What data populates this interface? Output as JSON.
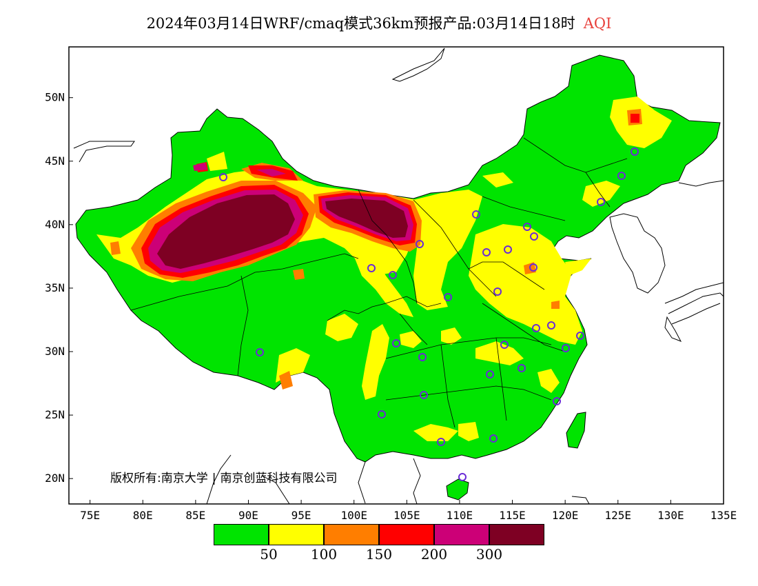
{
  "title": {
    "main": "2024年03月14日WRF/cmaq模式36km预报产品:03月14日18时",
    "variable": "AQI"
  },
  "copyright": {
    "owner1": "版权所有:南京大学",
    "separator": "|",
    "owner2": "南京创蓝科技有限公司"
  },
  "map": {
    "lon_range": [
      73,
      135
    ],
    "lat_range": [
      18,
      54
    ],
    "x_ticks": [
      "75E",
      "80E",
      "85E",
      "90E",
      "95E",
      "100E",
      "105E",
      "110E",
      "115E",
      "120E",
      "125E",
      "130E",
      "135E"
    ],
    "y_ticks": [
      "20N",
      "25N",
      "30N",
      "35N",
      "40N",
      "45N",
      "50N"
    ]
  },
  "legend": {
    "colors": [
      "#00e400",
      "#ffff00",
      "#ff7e00",
      "#ff0000",
      "#cc0077",
      "#7e0023"
    ],
    "labels": [
      "50",
      "100",
      "150",
      "200",
      "300"
    ]
  }
}
